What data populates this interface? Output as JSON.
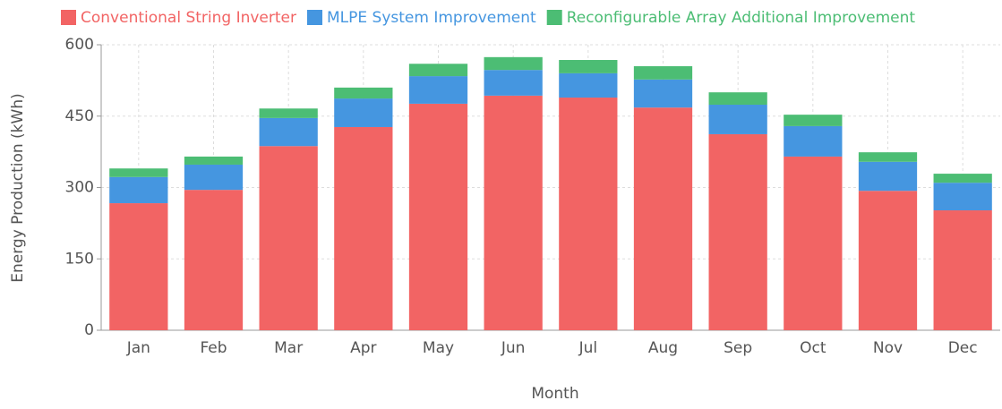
{
  "chart_data": {
    "type": "stacked_bar",
    "x_label": "Month",
    "y_label": "Energy Production (kWh)",
    "categories": [
      "Jan",
      "Feb",
      "Mar",
      "Apr",
      "May",
      "Jun",
      "Jul",
      "Aug",
      "Sep",
      "Oct",
      "Nov",
      "Dec"
    ],
    "series": [
      {
        "name": "Conventional String Inverter",
        "color": "#f26464",
        "values": [
          267,
          295,
          387,
          427,
          476,
          493,
          489,
          468,
          412,
          365,
          293,
          252
        ]
      },
      {
        "name": "MLPE System Improvement",
        "color": "#4596e0",
        "values": [
          55,
          53,
          59,
          60,
          58,
          54,
          51,
          59,
          62,
          64,
          61,
          58
        ]
      },
      {
        "name": "Reconfigurable Array Additional Improvement",
        "color": "#4cbd74",
        "values": [
          18,
          17,
          20,
          23,
          26,
          27,
          28,
          28,
          26,
          24,
          20,
          19
        ]
      }
    ],
    "ylim": [
      0,
      600
    ],
    "yticks": [
      0,
      150,
      300,
      450,
      600
    ],
    "grid": true,
    "legend": "top"
  }
}
